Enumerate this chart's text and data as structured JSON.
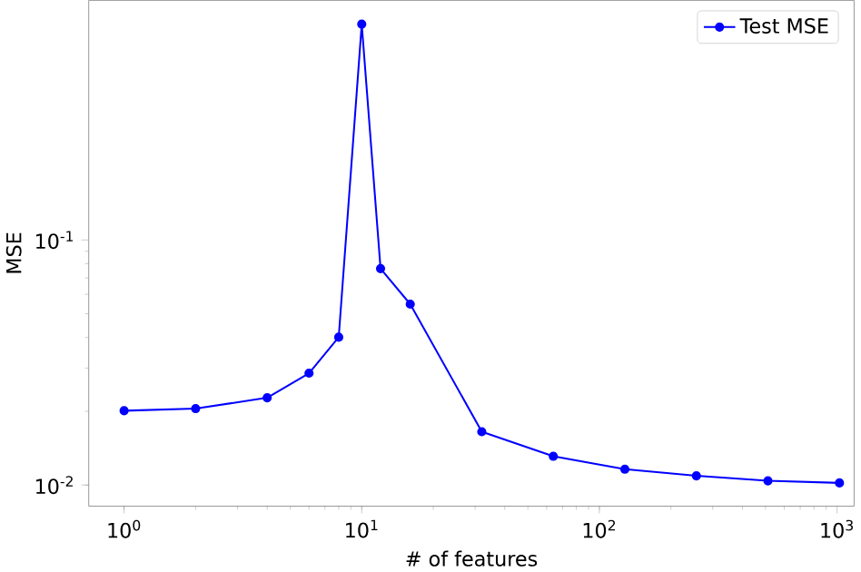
{
  "chart_data": {
    "type": "line",
    "xlabel": "# of features",
    "ylabel": "MSE",
    "log": "xy",
    "xlim": [
      0.71,
      1180
    ],
    "ylim": [
      0.0082,
      0.95
    ],
    "xticks": [
      {
        "value": 1,
        "label": "10$^{0}$"
      },
      {
        "value": 10,
        "label": "10$^{1}$"
      },
      {
        "value": 100,
        "label": "10$^{2}$"
      },
      {
        "value": 1000,
        "label": "10$^{3}$"
      }
    ],
    "yticks": [
      {
        "value": 0.01,
        "label": "10$^{-2}$"
      },
      {
        "value": 0.1,
        "label": "10$^{-1}$"
      }
    ],
    "x": [
      1,
      2,
      4,
      6,
      8,
      10,
      12,
      16,
      32,
      64,
      128,
      256,
      512,
      1024
    ],
    "series": [
      {
        "name": "Test MSE",
        "color": "#0000ff",
        "values": [
          0.0201,
          0.0205,
          0.0227,
          0.0286,
          0.0401,
          0.76,
          0.0764,
          0.0547,
          0.0165,
          0.0131,
          0.0116,
          0.0109,
          0.0104,
          0.0102
        ]
      }
    ],
    "legend": "top right",
    "marker": "circle",
    "line_style": "solid",
    "grid": false
  }
}
